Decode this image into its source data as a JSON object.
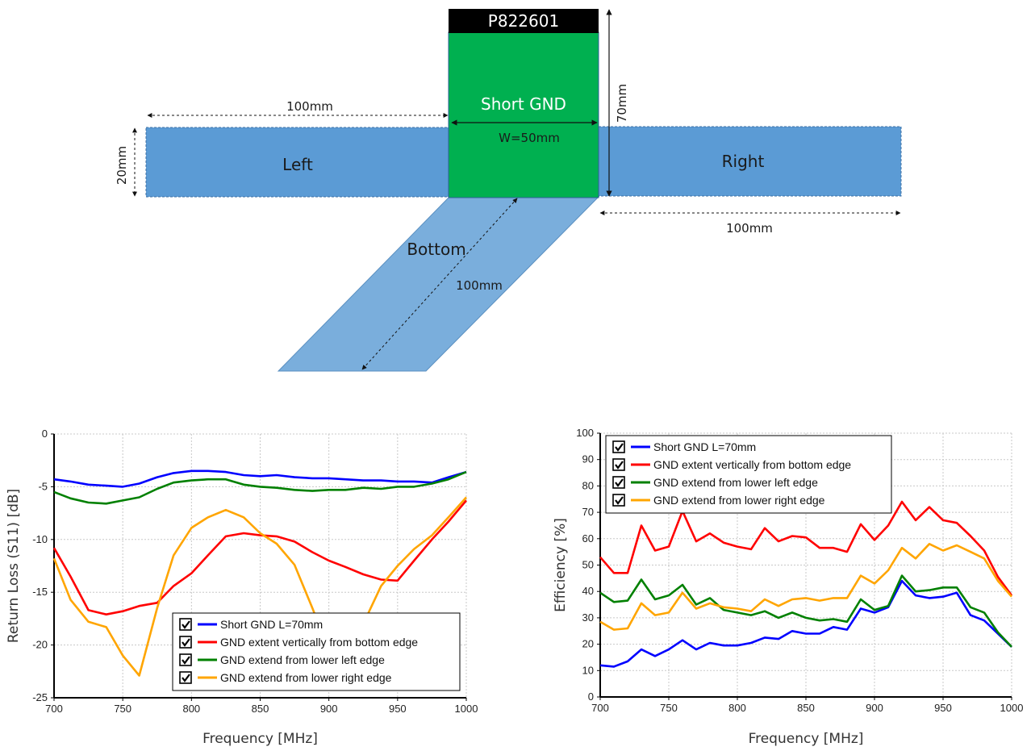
{
  "diagram": {
    "part_number": "P822601",
    "center_label": "Short GND",
    "center_width_label": "W=50mm",
    "height_label": "70mm",
    "left_label": "Left",
    "right_label": "Right",
    "bottom_label": "Bottom",
    "left_length_label": "100mm",
    "right_length_label": "100mm",
    "bottom_length_label": "100mm",
    "strip_width_label": "20mm",
    "colors": {
      "center": "#00b050",
      "strips": "#5b9bd5",
      "bottom": "#7aaedc",
      "header": "#000000"
    }
  },
  "chart_data": [
    {
      "type": "line",
      "xlabel": "Frequency [MHz]",
      "ylabel": "Return Loss (S11) [dB]",
      "xlim": [
        700,
        1000
      ],
      "ylim": [
        -25,
        0
      ],
      "xticks": [
        "700",
        "750",
        "800",
        "850",
        "900",
        "950",
        "1000"
      ],
      "yticks": [
        "0",
        "-5",
        "-10",
        "-15",
        "-20",
        "-25"
      ],
      "grid": true,
      "legend_position": "bottom-right",
      "x": [
        700,
        712,
        725,
        738,
        750,
        762,
        775,
        787,
        800,
        812,
        825,
        838,
        850,
        862,
        875,
        888,
        900,
        912,
        925,
        938,
        950,
        962,
        975,
        987,
        1000
      ],
      "series": [
        {
          "name": "Short GND L=70mm",
          "color": "#0000ff",
          "values": [
            -4.3,
            -4.5,
            -4.8,
            -4.9,
            -5.0,
            -4.7,
            -4.1,
            -3.7,
            -3.5,
            -3.5,
            -3.6,
            -3.9,
            -4.0,
            -3.9,
            -4.1,
            -4.2,
            -4.2,
            -4.3,
            -4.4,
            -4.4,
            -4.5,
            -4.5,
            -4.6,
            -4.1,
            -3.6
          ]
        },
        {
          "name": "GND extent vertically from bottom edge",
          "color": "#ff0000",
          "values": [
            -10.8,
            -13.5,
            -16.7,
            -17.1,
            -16.8,
            -16.3,
            -16.0,
            -14.4,
            -13.2,
            -11.5,
            -9.7,
            -9.4,
            -9.6,
            -9.7,
            -10.2,
            -11.2,
            -12.0,
            -12.6,
            -13.3,
            -13.8,
            -13.9,
            -12.0,
            -10.0,
            -8.3,
            -6.3
          ]
        },
        {
          "name": "GND extend from lower left edge",
          "color": "#008000",
          "values": [
            -5.5,
            -6.1,
            -6.5,
            -6.6,
            -6.3,
            -6.0,
            -5.2,
            -4.6,
            -4.4,
            -4.3,
            -4.3,
            -4.8,
            -5.0,
            -5.1,
            -5.3,
            -5.4,
            -5.3,
            -5.3,
            -5.1,
            -5.2,
            -5.0,
            -5.0,
            -4.7,
            -4.3,
            -3.6
          ]
        },
        {
          "name": "GND extend from lower right edge",
          "color": "#ffa500",
          "values": [
            -11.8,
            -15.7,
            -17.8,
            -18.3,
            -21.0,
            -22.9,
            -16.5,
            -11.5,
            -8.9,
            -7.9,
            -7.2,
            -7.9,
            -9.4,
            -10.4,
            -12.4,
            -16.5,
            -20.5,
            -23.5,
            -18.0,
            -14.4,
            -12.5,
            -10.9,
            -9.6,
            -7.9,
            -6.0
          ]
        }
      ]
    },
    {
      "type": "line",
      "xlabel": "Frequency [MHz]",
      "ylabel": "Efficiency [%]",
      "xlim": [
        700,
        1000
      ],
      "ylim": [
        0,
        100
      ],
      "xticks": [
        "700",
        "750",
        "800",
        "850",
        "900",
        "950",
        "1000"
      ],
      "yticks": [
        "100",
        "90",
        "80",
        "70",
        "60",
        "50",
        "40",
        "30",
        "20",
        "10",
        "0"
      ],
      "grid": true,
      "legend_position": "top-left",
      "x": [
        700,
        710,
        720,
        730,
        740,
        750,
        760,
        770,
        780,
        790,
        800,
        810,
        820,
        830,
        840,
        850,
        860,
        870,
        880,
        890,
        900,
        910,
        920,
        930,
        940,
        950,
        960,
        970,
        980,
        990,
        1000
      ],
      "series": [
        {
          "name": "Short GND L=70mm",
          "color": "#0000ff",
          "values": [
            12,
            11.5,
            13.5,
            18,
            15.5,
            18,
            21.5,
            18,
            20.5,
            19.5,
            19.5,
            20.5,
            22.5,
            22,
            25,
            24,
            24,
            26.5,
            25.5,
            33.5,
            32,
            34,
            44,
            38.5,
            37.5,
            38,
            39.5,
            31,
            29,
            24,
            19
          ]
        },
        {
          "name": "GND extent vertically from bottom edge",
          "color": "#ff0000",
          "values": [
            53,
            47,
            47,
            65,
            55.5,
            57,
            70.5,
            59,
            62,
            58.5,
            57,
            56,
            64,
            59,
            61,
            60.5,
            56.5,
            56.5,
            55,
            65.5,
            59.5,
            65,
            74,
            67,
            72,
            67,
            66,
            61,
            55.5,
            45.5,
            38.5
          ]
        },
        {
          "name": "GND extend from lower left edge",
          "color": "#008000",
          "values": [
            39.5,
            36,
            36.5,
            44.5,
            37,
            38.5,
            42.5,
            35,
            37.5,
            33,
            32,
            31,
            32.5,
            30,
            32,
            30,
            29,
            29.5,
            28.5,
            37,
            33,
            34.5,
            46,
            40,
            40.5,
            41.5,
            41.5,
            34,
            32,
            24.5,
            19
          ]
        },
        {
          "name": "GND extend from lower right edge",
          "color": "#ffa500",
          "values": [
            28.5,
            25.5,
            26,
            35.5,
            31,
            32,
            39.5,
            33.5,
            35.5,
            34,
            33.5,
            32.5,
            37,
            34.5,
            37,
            37.5,
            36.5,
            37.5,
            37.5,
            46,
            43,
            48,
            56.5,
            52.5,
            58,
            55.5,
            57.5,
            55,
            52.5,
            44,
            38
          ]
        }
      ]
    }
  ]
}
